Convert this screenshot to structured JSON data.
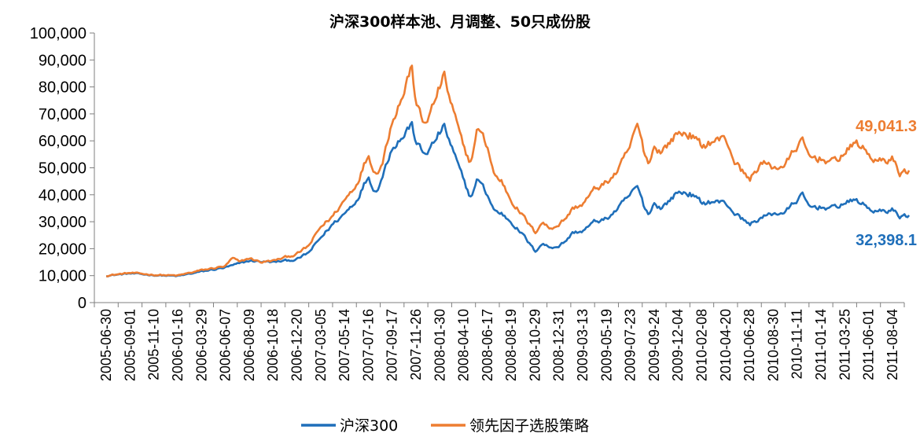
{
  "chart_data": {
    "type": "line",
    "title": "沪深300样本池、月调整、50只成份股",
    "xlabel": "",
    "ylabel": "",
    "ylim": [
      0,
      100000
    ],
    "yticks": [
      "100,000",
      "90,000",
      "80,000",
      "70,000",
      "60,000",
      "50,000",
      "40,000",
      "30,000",
      "20,000",
      "10,000",
      "0"
    ],
    "ytick_values": [
      100000,
      90000,
      80000,
      70000,
      60000,
      50000,
      40000,
      30000,
      20000,
      10000,
      0
    ],
    "xticks": [
      "2005-06-30",
      "2005-09-01",
      "2005-11-10",
      "2006-01-16",
      "2006-03-29",
      "2006-06-07",
      "2006-08-09",
      "2006-10-18",
      "2006-12-20",
      "2007-03-05",
      "2007-05-14",
      "2007-07-16",
      "2007-09-17",
      "2007-11-26",
      "2008-01-30",
      "2008-04-10",
      "2008-06-17",
      "2008-08-19",
      "2008-10-29",
      "2008-12-31",
      "2009-03-13",
      "2009-05-19",
      "2009-07-23",
      "2009-09-24",
      "2009-12-04",
      "2010-02-08",
      "2010-04-20",
      "2010-06-28",
      "2010-08-30",
      "2010-11-11",
      "2011-01-14",
      "2011-03-25",
      "2011-06-01",
      "2011-08-04"
    ],
    "grid": false,
    "legend_position": "bottom",
    "series": [
      {
        "name": "沪深300",
        "color": "#1f6fba",
        "end_label": "32,398.1",
        "values": [
          [
            0,
            10000
          ],
          [
            1,
            10800
          ],
          [
            2,
            10200
          ],
          [
            3,
            9800
          ],
          [
            4,
            11500
          ],
          [
            5,
            13000
          ],
          [
            6,
            15500
          ],
          [
            7,
            15000
          ],
          [
            8,
            16000
          ],
          [
            8.5,
            18500
          ],
          [
            9,
            24000
          ],
          [
            9.5,
            29000
          ],
          [
            10,
            33000
          ],
          [
            10.5,
            38000
          ],
          [
            11,
            47000
          ],
          [
            11.3,
            41000
          ],
          [
            11.6,
            47000
          ],
          [
            12,
            58000
          ],
          [
            12.5,
            62000
          ],
          [
            12.8,
            66500
          ],
          [
            13,
            60000
          ],
          [
            13.3,
            55000
          ],
          [
            13.6,
            57000
          ],
          [
            14,
            63000
          ],
          [
            14.2,
            65000
          ],
          [
            14.4,
            60000
          ],
          [
            14.6,
            55000
          ],
          [
            15,
            45000
          ],
          [
            15.3,
            39000
          ],
          [
            15.6,
            46000
          ],
          [
            16,
            40000
          ],
          [
            16.3,
            34000
          ],
          [
            16.6,
            33000
          ],
          [
            17,
            30000
          ],
          [
            17.5,
            25000
          ],
          [
            18,
            19000
          ],
          [
            18.3,
            22000
          ],
          [
            18.6,
            20500
          ],
          [
            19,
            21000
          ],
          [
            19.3,
            23000
          ],
          [
            19.6,
            26000
          ],
          [
            20,
            26500
          ],
          [
            20.5,
            30000
          ],
          [
            21,
            31000
          ],
          [
            21.5,
            35000
          ],
          [
            22,
            40000
          ],
          [
            22.3,
            43000
          ],
          [
            22.6,
            35000
          ],
          [
            22.8,
            33000
          ],
          [
            23,
            37000
          ],
          [
            23.3,
            35000
          ],
          [
            24,
            41000
          ],
          [
            24.5,
            40500
          ],
          [
            25,
            37000
          ],
          [
            25.5,
            37500
          ],
          [
            26,
            37000
          ],
          [
            26.4,
            33000
          ],
          [
            27,
            29000
          ],
          [
            27.5,
            31500
          ],
          [
            28,
            33000
          ],
          [
            28.5,
            33500
          ],
          [
            29,
            38000
          ],
          [
            29.2,
            40000
          ],
          [
            29.5,
            35500
          ],
          [
            30,
            35500
          ],
          [
            30.5,
            35000
          ],
          [
            31,
            37000
          ],
          [
            31.5,
            38000
          ],
          [
            32,
            35000
          ],
          [
            32.4,
            33500
          ],
          [
            33,
            34500
          ],
          [
            33.3,
            32000
          ],
          [
            33.7,
            32398.1
          ]
        ]
      },
      {
        "name": "领先因子选股策略",
        "color": "#ed7d31",
        "end_label": "49,041.3",
        "values": [
          [
            0,
            10000
          ],
          [
            1,
            11000
          ],
          [
            2,
            10300
          ],
          [
            3,
            10000
          ],
          [
            4,
            12000
          ],
          [
            5,
            13500
          ],
          [
            5.3,
            16500
          ],
          [
            5.6,
            15000
          ],
          [
            6,
            16500
          ],
          [
            6.5,
            15000
          ],
          [
            7,
            15500
          ],
          [
            8,
            18000
          ],
          [
            8.5,
            21000
          ],
          [
            9,
            28000
          ],
          [
            9.5,
            32000
          ],
          [
            10,
            38000
          ],
          [
            10.5,
            44000
          ],
          [
            11,
            55000
          ],
          [
            11.3,
            48000
          ],
          [
            11.6,
            52000
          ],
          [
            12,
            68000
          ],
          [
            12.5,
            78000
          ],
          [
            12.8,
            88000
          ],
          [
            13,
            75000
          ],
          [
            13.3,
            66000
          ],
          [
            13.6,
            70000
          ],
          [
            14,
            80000
          ],
          [
            14.2,
            84000
          ],
          [
            14.4,
            76000
          ],
          [
            14.6,
            70000
          ],
          [
            15,
            57000
          ],
          [
            15.3,
            52000
          ],
          [
            15.6,
            65000
          ],
          [
            16,
            58000
          ],
          [
            16.3,
            47000
          ],
          [
            16.6,
            45000
          ],
          [
            17,
            38000
          ],
          [
            17.5,
            32000
          ],
          [
            18,
            26000
          ],
          [
            18.3,
            30000
          ],
          [
            18.6,
            27500
          ],
          [
            19,
            29000
          ],
          [
            19.3,
            31500
          ],
          [
            19.6,
            35000
          ],
          [
            20,
            36500
          ],
          [
            20.5,
            42000
          ],
          [
            21,
            44500
          ],
          [
            21.5,
            49000
          ],
          [
            22,
            58000
          ],
          [
            22.3,
            66000
          ],
          [
            22.6,
            55000
          ],
          [
            22.8,
            52000
          ],
          [
            23,
            58000
          ],
          [
            23.3,
            56000
          ],
          [
            24,
            63000
          ],
          [
            24.5,
            62500
          ],
          [
            25,
            58000
          ],
          [
            25.5,
            60000
          ],
          [
            26,
            61000
          ],
          [
            26.4,
            52000
          ],
          [
            27,
            45500
          ],
          [
            27.5,
            52000
          ],
          [
            28,
            50000
          ],
          [
            28.5,
            51000
          ],
          [
            29,
            58000
          ],
          [
            29.2,
            60000
          ],
          [
            29.5,
            54000
          ],
          [
            30,
            53500
          ],
          [
            30.5,
            52000
          ],
          [
            31,
            55500
          ],
          [
            31.5,
            59500
          ],
          [
            32,
            55000
          ],
          [
            32.4,
            52000
          ],
          [
            33,
            53500
          ],
          [
            33.3,
            48000
          ],
          [
            33.7,
            49041.3
          ]
        ]
      }
    ]
  }
}
